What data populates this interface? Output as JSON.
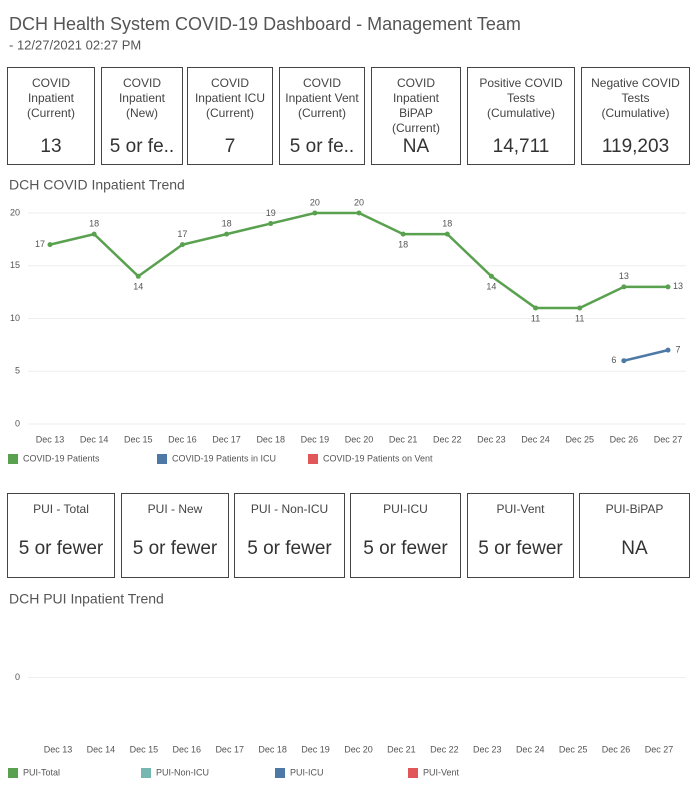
{
  "header": {
    "title": "DCH Health System COVID-19 Dashboard - Management Team",
    "subtitle": "- 12/27/2021 02:27 PM"
  },
  "cards_top": [
    {
      "label": "COVID Inpatient (Current)",
      "value": "13"
    },
    {
      "label": "COVID Inpatient (New)",
      "value": "5 or fe.."
    },
    {
      "label": "COVID Inpatient ICU (Current)",
      "value": "7"
    },
    {
      "label": "COVID Inpatient Vent (Current)",
      "value": "5 or fe.."
    },
    {
      "label": "COVID Inpatient BiPAP (Current)",
      "value": "NA"
    },
    {
      "label": "Positive COVID Tests (Cumulative)",
      "value": "14,711"
    },
    {
      "label": "Negative COVID Tests (Cumulative)",
      "value": "119,203"
    }
  ],
  "cards_pui": [
    {
      "label": "PUI - Total",
      "value": "5 or fewer"
    },
    {
      "label": "PUI - New",
      "value": "5 or fewer"
    },
    {
      "label": "PUI - Non-ICU",
      "value": "5 or fewer"
    },
    {
      "label": "PUI-ICU",
      "value": "5 or fewer"
    },
    {
      "label": "PUI-Vent",
      "value": "5 or fewer"
    },
    {
      "label": "PUI-BiPAP",
      "value": "NA"
    }
  ],
  "chart_data": [
    {
      "type": "line",
      "title": "DCH COVID Inpatient Trend",
      "categories": [
        "Dec 13",
        "Dec 14",
        "Dec 15",
        "Dec 16",
        "Dec 17",
        "Dec 18",
        "Dec 19",
        "Dec 20",
        "Dec 21",
        "Dec 22",
        "Dec 23",
        "Dec 24",
        "Dec 25",
        "Dec 26",
        "Dec 27"
      ],
      "series": [
        {
          "name": "COVID-19 Patients",
          "color": "#59a14f",
          "values": [
            17,
            18,
            14,
            17,
            18,
            19,
            20,
            20,
            18,
            18,
            14,
            11,
            11,
            13,
            13
          ]
        },
        {
          "name": "COVID-19 Patients in ICU",
          "color": "#4e79a7",
          "values": [
            null,
            null,
            null,
            null,
            null,
            null,
            null,
            null,
            null,
            null,
            null,
            null,
            null,
            6,
            7
          ]
        },
        {
          "name": "COVID-19 Patients on Vent",
          "color": "#e15759",
          "values": [
            null,
            null,
            null,
            null,
            null,
            null,
            null,
            null,
            null,
            null,
            null,
            null,
            null,
            null,
            null
          ]
        }
      ],
      "ylim": [
        0,
        20
      ],
      "yticks": [
        0,
        5,
        10,
        15,
        20
      ],
      "grid": true,
      "data_labels": true,
      "legend": "bottom"
    },
    {
      "type": "line",
      "title": "DCH PUI Inpatient Trend",
      "categories": [
        "Dec 13",
        "Dec 14",
        "Dec 15",
        "Dec 16",
        "Dec 17",
        "Dec 18",
        "Dec 19",
        "Dec 20",
        "Dec 21",
        "Dec 22",
        "Dec 23",
        "Dec 24",
        "Dec 25",
        "Dec 26",
        "Dec 27"
      ],
      "series": [
        {
          "name": "PUI-Total",
          "color": "#59a14f",
          "values": [
            null,
            null,
            null,
            null,
            null,
            null,
            null,
            null,
            null,
            null,
            null,
            null,
            null,
            null,
            null
          ]
        },
        {
          "name": "PUI-Non-ICU",
          "color": "#76b7b2",
          "values": [
            null,
            null,
            null,
            null,
            null,
            null,
            null,
            null,
            null,
            null,
            null,
            null,
            null,
            null,
            null
          ]
        },
        {
          "name": "PUI-ICU",
          "color": "#4e79a7",
          "values": [
            null,
            null,
            null,
            null,
            null,
            null,
            null,
            null,
            null,
            null,
            null,
            null,
            null,
            null,
            null
          ]
        },
        {
          "name": "PUI-Vent",
          "color": "#e15759",
          "values": [
            null,
            null,
            null,
            null,
            null,
            null,
            null,
            null,
            null,
            null,
            null,
            null,
            null,
            null,
            null
          ]
        }
      ],
      "ylim": [
        -1,
        1
      ],
      "yticks": [
        0
      ],
      "grid": true,
      "data_labels": true,
      "legend": "bottom"
    }
  ]
}
